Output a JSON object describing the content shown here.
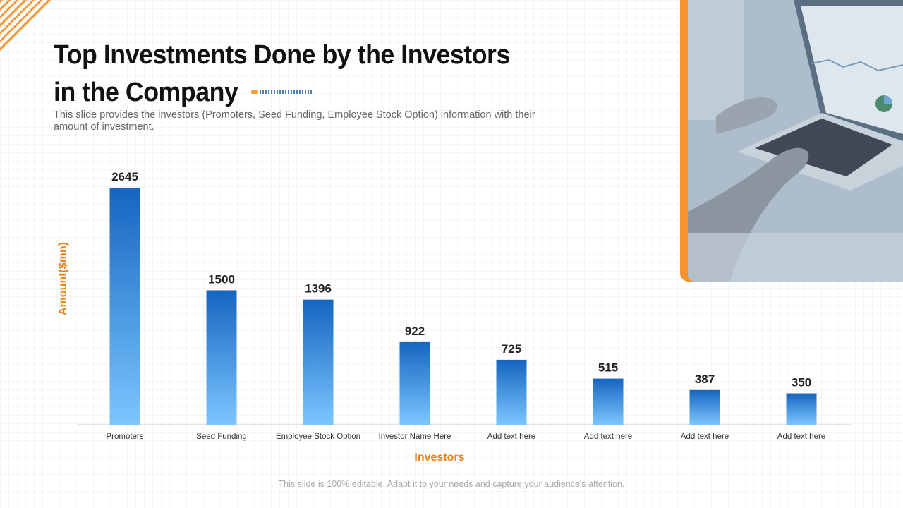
{
  "slide": {
    "title": "Top Investments Done by the Investors in the Company",
    "subtitle": "This slide provides the investors (Promoters, Seed Funding, Employee Stock Option) information with their amount of investment.",
    "footer": "This slide is 100% editable. Adapt it to your needs and capture your audience's attention."
  },
  "colors": {
    "accent": "#f7932f",
    "axis_label": "#e8821e",
    "bar_top": "#1565c0",
    "bar_bottom": "#7cc6ff"
  },
  "chart_data": {
    "type": "bar",
    "categories": [
      "Promoters",
      "Seed Funding",
      "Employee Stock Option",
      "Investor Name Here",
      "Add text here",
      "Add text here",
      "Add text here",
      "Add text here"
    ],
    "values": [
      2645,
      1500,
      1396,
      922,
      725,
      515,
      387,
      350
    ],
    "xlabel": "Investors",
    "ylabel": "Amount($mn)",
    "ylim": [
      0,
      2645
    ],
    "grid": false,
    "legend": "none",
    "data_labels": true
  }
}
